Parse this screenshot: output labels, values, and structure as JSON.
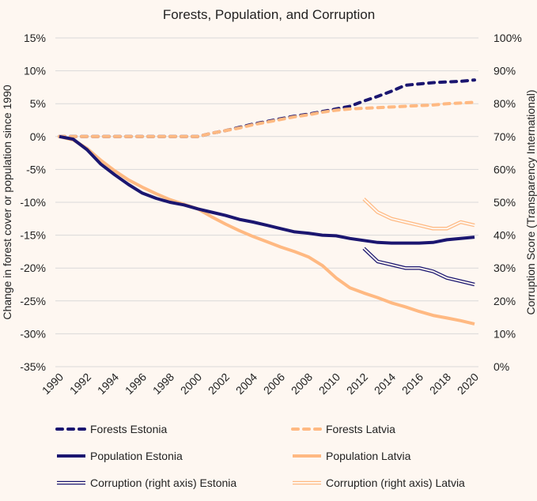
{
  "chart_data": {
    "type": "line",
    "title": "Forests, Population, and Corruption",
    "ylabel": "Change in forest cover or population since 1990",
    "ylabel_right": "Corruption Score (Transparency International)",
    "xlabel": "",
    "ylim": [
      -35,
      15
    ],
    "ylim_right": [
      0,
      100
    ],
    "yticks": [
      "15%",
      "10%",
      "5%",
      "0%",
      "-5%",
      "-10%",
      "-15%",
      "-20%",
      "-25%",
      "-30%",
      "-35%"
    ],
    "yticks_right": [
      "100%",
      "90%",
      "80%",
      "70%",
      "60%",
      "50%",
      "40%",
      "30%",
      "20%",
      "10%",
      "0%"
    ],
    "xticks": [
      "1990",
      "1992",
      "1994",
      "1996",
      "1998",
      "2000",
      "2002",
      "2004",
      "2006",
      "2008",
      "2010",
      "2012",
      "2014",
      "2016",
      "2018",
      "2020"
    ],
    "grid": true,
    "legend_placement": "bottom",
    "colors": {
      "estonia": "#1b1670",
      "latvia": "#ffb982"
    },
    "x_start": 1990,
    "series": [
      {
        "name": "Forests Estonia",
        "country": "estonia",
        "style": "dashed",
        "axis": "left",
        "start": 1990,
        "values": [
          0,
          0,
          0,
          0,
          0,
          0,
          0,
          0,
          0,
          0,
          0,
          0.5,
          0.9,
          1.4,
          1.9,
          2.3,
          2.7,
          3.1,
          3.4,
          3.8,
          4.2,
          4.6,
          5.4,
          6.1,
          6.9,
          7.8,
          8.0,
          8.2,
          8.3,
          8.4,
          8.6
        ]
      },
      {
        "name": "Forests Latvia",
        "country": "latvia",
        "style": "dashed",
        "axis": "left",
        "start": 1990,
        "values": [
          0,
          0,
          0,
          0,
          0,
          0,
          0,
          0,
          0,
          0,
          0,
          0.5,
          0.9,
          1.3,
          1.8,
          2.2,
          2.6,
          3.0,
          3.3,
          3.7,
          4.0,
          4.2,
          4.3,
          4.4,
          4.5,
          4.6,
          4.7,
          4.8,
          5.0,
          5.1,
          5.2
        ]
      },
      {
        "name": "Population Estonia",
        "country": "estonia",
        "style": "solid",
        "axis": "left",
        "start": 1990,
        "values": [
          0,
          -0.4,
          -2,
          -4.2,
          -5.8,
          -7.3,
          -8.6,
          -9.4,
          -10,
          -10.4,
          -11,
          -11.5,
          -12,
          -12.6,
          -13,
          -13.5,
          -14,
          -14.5,
          -14.7,
          -15,
          -15.1,
          -15.5,
          -15.8,
          -16.1,
          -16.2,
          -16.2,
          -16.2,
          -16.1,
          -15.7,
          -15.5,
          -15.3
        ]
      },
      {
        "name": "Population Latvia",
        "country": "latvia",
        "style": "solid",
        "axis": "left",
        "start": 1990,
        "values": [
          0,
          -0.5,
          -1.8,
          -3.6,
          -5.2,
          -6.6,
          -7.7,
          -8.7,
          -9.6,
          -10.3,
          -11,
          -12.2,
          -13.3,
          -14.3,
          -15.2,
          -16,
          -16.8,
          -17.5,
          -18.3,
          -19.6,
          -21.5,
          -23,
          -23.8,
          -24.5,
          -25.3,
          -25.9,
          -26.6,
          -27.2,
          -27.6,
          -28,
          -28.5
        ]
      },
      {
        "name": "Corruption (right axis) Estonia",
        "country": "estonia",
        "style": "double",
        "axis": "right",
        "start": 2012,
        "values": [
          36,
          32,
          31,
          30,
          30,
          29,
          27,
          26,
          25
        ]
      },
      {
        "name": "Corruption (right axis) Latvia",
        "country": "latvia",
        "style": "double",
        "axis": "right",
        "start": 2012,
        "values": [
          51,
          47,
          45,
          44,
          43,
          42,
          42,
          44,
          43
        ]
      }
    ]
  }
}
